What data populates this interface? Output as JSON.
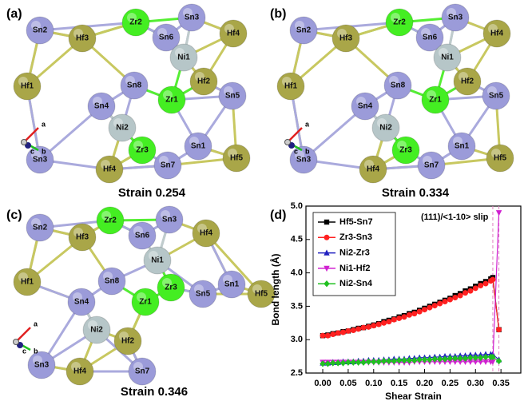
{
  "panels": [
    {
      "label": "(a)",
      "caption": "Strain 0.254",
      "axes_labels": [
        "a",
        "b",
        "c"
      ],
      "atoms": [
        "Sn2",
        "Zr2",
        "Sn3",
        "Hf3",
        "Sn6",
        "Hf4",
        "Ni1",
        "Hf1",
        "Sn8",
        "Hf2",
        "Sn4",
        "Zr1",
        "Sn5",
        "Ni2",
        "Zr3",
        "Sn1",
        "Sn3",
        "Hf4",
        "Sn7",
        "Hf5"
      ]
    },
    {
      "label": "(b)",
      "caption": "Strain 0.334",
      "axes_labels": [
        "a",
        "b",
        "c"
      ],
      "atoms": [
        "Sn2",
        "Zr2",
        "Sn3",
        "Hf3",
        "Sn6",
        "Hf4",
        "Ni1",
        "Hf1",
        "Sn8",
        "Hf2",
        "Sn4",
        "Zr1",
        "Sn5",
        "Ni2",
        "Zr3",
        "Sn1",
        "Sn3",
        "Hf4",
        "Sn7",
        "Hf5"
      ]
    },
    {
      "label": "(c)",
      "caption": "Strain 0.346",
      "axes_labels": [
        "a",
        "b",
        "c"
      ],
      "atoms": [
        "Sn2",
        "Zr2",
        "Sn3",
        "Hf3",
        "Sn6",
        "Hf4",
        "Ni1",
        "Hf1",
        "Sn8",
        "Zr3",
        "Sn1",
        "Hf5",
        "Sn4",
        "Zr1",
        "Sn5",
        "Ni2",
        "Hf2",
        "Sn3",
        "Hf4",
        "Sn7"
      ]
    }
  ],
  "chart_data": {
    "type": "line",
    "panel_label": "(d)",
    "annotation": "(111)/<1-10> slip",
    "xlabel": "Shear Strain",
    "ylabel": "Bond length (Å)",
    "x": [
      0,
      0.01,
      0.02,
      0.03,
      0.04,
      0.05,
      0.06,
      0.07,
      0.08,
      0.09,
      0.1,
      0.11,
      0.12,
      0.13,
      0.14,
      0.15,
      0.16,
      0.17,
      0.18,
      0.19,
      0.2,
      0.21,
      0.22,
      0.23,
      0.24,
      0.25,
      0.26,
      0.27,
      0.28,
      0.29,
      0.3,
      0.31,
      0.32,
      0.33,
      0.334,
      0.346
    ],
    "series": [
      {
        "name": "Hf5-Sn7",
        "color": "#000000",
        "marker": "square",
        "values": [
          3.06,
          3.07,
          3.09,
          3.1,
          3.12,
          3.13,
          3.15,
          3.17,
          3.18,
          3.2,
          3.22,
          3.24,
          3.27,
          3.29,
          3.31,
          3.34,
          3.36,
          3.39,
          3.41,
          3.44,
          3.47,
          3.5,
          3.53,
          3.56,
          3.59,
          3.62,
          3.66,
          3.69,
          3.73,
          3.76,
          3.8,
          3.84,
          3.87,
          3.91,
          3.93,
          3.15
        ]
      },
      {
        "name": "Zr3-Sn3",
        "color": "#ff2020",
        "marker": "circle",
        "values": [
          3.06,
          3.06,
          3.08,
          3.1,
          3.11,
          3.13,
          3.14,
          3.16,
          3.18,
          3.19,
          3.21,
          3.23,
          3.25,
          3.27,
          3.3,
          3.32,
          3.34,
          3.37,
          3.39,
          3.42,
          3.45,
          3.48,
          3.51,
          3.54,
          3.57,
          3.6,
          3.63,
          3.66,
          3.7,
          3.73,
          3.77,
          3.81,
          3.84,
          3.88,
          3.9,
          3.15
        ]
      },
      {
        "name": "Ni2-Zr3",
        "color": "#2020c0",
        "marker": "triangle",
        "values": [
          2.65,
          2.65,
          2.66,
          2.66,
          2.67,
          2.67,
          2.67,
          2.68,
          2.68,
          2.69,
          2.69,
          2.69,
          2.7,
          2.7,
          2.71,
          2.71,
          2.71,
          2.72,
          2.72,
          2.73,
          2.73,
          2.73,
          2.74,
          2.74,
          2.75,
          2.75,
          2.75,
          2.76,
          2.76,
          2.77,
          2.77,
          2.77,
          2.78,
          2.78,
          2.78,
          2.7
        ]
      },
      {
        "name": "Ni1-Hf2",
        "color": "#d020d0",
        "marker": "triangle-down",
        "values": [
          2.66,
          2.66,
          2.66,
          2.66,
          2.66,
          2.66,
          2.66,
          2.66,
          2.66,
          2.66,
          2.66,
          2.66,
          2.66,
          2.66,
          2.66,
          2.66,
          2.66,
          2.66,
          2.67,
          2.67,
          2.67,
          2.67,
          2.67,
          2.67,
          2.67,
          2.67,
          2.67,
          2.67,
          2.67,
          2.67,
          2.67,
          2.67,
          2.67,
          2.67,
          2.67,
          4.9
        ]
      },
      {
        "name": "Ni2-Sn4",
        "color": "#20c020",
        "marker": "diamond",
        "values": [
          2.64,
          2.64,
          2.65,
          2.65,
          2.65,
          2.66,
          2.66,
          2.66,
          2.66,
          2.67,
          2.67,
          2.67,
          2.68,
          2.68,
          2.68,
          2.69,
          2.69,
          2.69,
          2.69,
          2.7,
          2.7,
          2.7,
          2.71,
          2.71,
          2.71,
          2.72,
          2.72,
          2.72,
          2.72,
          2.73,
          2.73,
          2.73,
          2.74,
          2.74,
          2.74,
          2.68
        ]
      }
    ],
    "vlines": [
      0.334,
      0.346
    ],
    "xlim": [
      -0.033,
      0.389
    ],
    "ylim": [
      2.5,
      5.0
    ],
    "xticks": [
      {
        "value": 0,
        "label": "0.00"
      },
      {
        "value": 0.05,
        "label": "0.05"
      },
      {
        "value": 0.1,
        "label": "0.10"
      },
      {
        "value": 0.15,
        "label": "0.15"
      },
      {
        "value": 0.2,
        "label": "0.20"
      },
      {
        "value": 0.25,
        "label": "0.25"
      },
      {
        "value": 0.3,
        "label": "0.30"
      },
      {
        "value": 0.35,
        "label": "0.35"
      }
    ],
    "yticks": [
      2.5,
      {
        "value": 3,
        "label": "3.0"
      },
      3.5,
      {
        "value": 4,
        "label": "4.0"
      },
      4.5,
      {
        "value": 5,
        "label": "5.0"
      }
    ],
    "legend": "upper left"
  }
}
